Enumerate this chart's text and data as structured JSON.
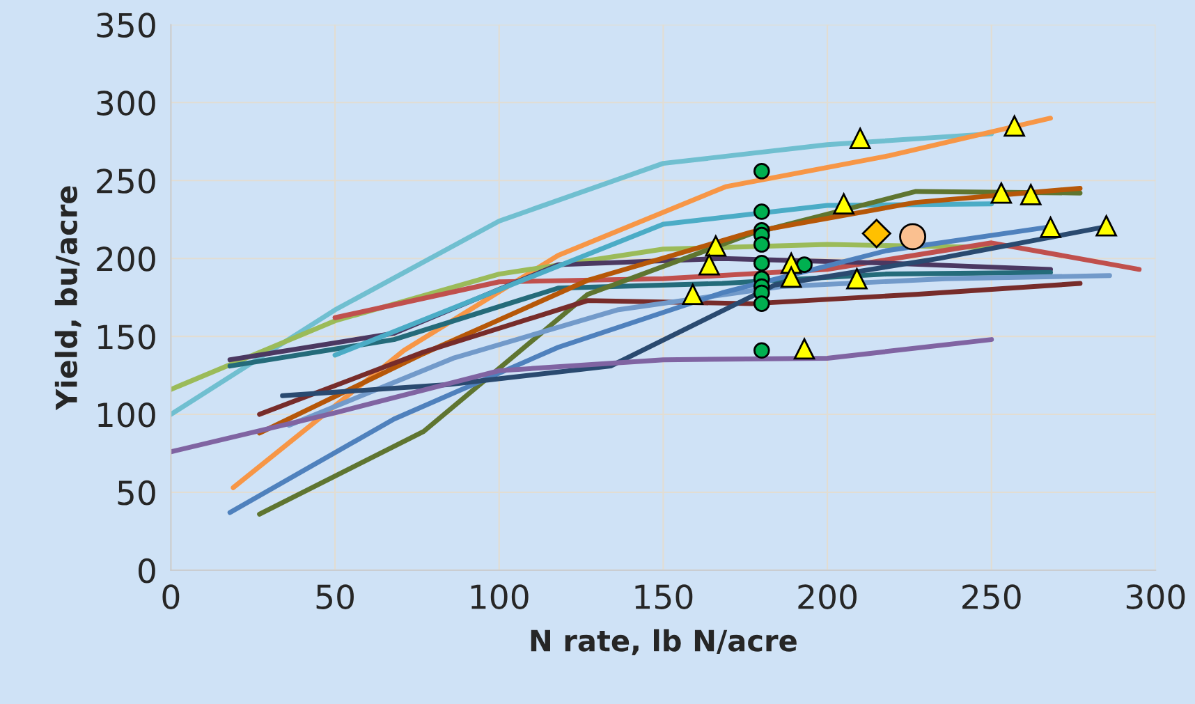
{
  "chart_data": {
    "type": "line",
    "xlabel": "N rate, lb N/acre",
    "ylabel": "Yield, bu/acre",
    "xlim": [
      0,
      300
    ],
    "ylim": [
      0,
      350
    ],
    "xticks": [
      0,
      50,
      100,
      150,
      200,
      250,
      300
    ],
    "yticks": [
      0,
      50,
      100,
      150,
      200,
      250,
      300,
      350
    ],
    "grid": true,
    "marker": "none",
    "line_style": "solid",
    "series": [
      {
        "color": "#70bfd0",
        "x": [
          0,
          50,
          100,
          150,
          200,
          250
        ],
        "values": [
          100,
          167,
          224,
          261,
          273,
          280
        ]
      },
      {
        "color": "#f79646",
        "x": [
          19,
          71,
          118,
          169,
          219,
          268
        ],
        "values": [
          53,
          141,
          202,
          246,
          266,
          290
        ]
      },
      {
        "color": "#9bbb59",
        "x": [
          0,
          50,
          100,
          150,
          200,
          250
        ],
        "values": [
          116,
          160,
          190,
          206,
          209,
          207
        ]
      },
      {
        "color": "#c0504d",
        "x": [
          50,
          100,
          150,
          200,
          250,
          295
        ],
        "values": [
          162,
          185,
          187,
          193,
          210,
          193
        ]
      },
      {
        "color": "#4b3861",
        "x": [
          18,
          68,
          118,
          168,
          218,
          268
        ],
        "values": [
          135,
          152,
          196,
          200,
          197,
          193
        ]
      },
      {
        "color": "#246b7a",
        "x": [
          18,
          68,
          118,
          168,
          218,
          268
        ],
        "values": [
          131,
          148,
          181,
          184,
          190,
          191
        ]
      },
      {
        "color": "#4bacc6",
        "x": [
          50,
          100,
          150,
          200,
          250
        ],
        "values": [
          138,
          180,
          222,
          234,
          235
        ]
      },
      {
        "color": "#5f7530",
        "x": [
          27,
          77,
          127,
          177,
          227,
          277
        ],
        "values": [
          36,
          89,
          177,
          216,
          243,
          242
        ]
      },
      {
        "color": "#b65708",
        "x": [
          27,
          77,
          127,
          177,
          227,
          277
        ],
        "values": [
          88,
          139,
          186,
          217,
          236,
          245
        ]
      },
      {
        "color": "#772c2a",
        "x": [
          27,
          77,
          127,
          177,
          227,
          277
        ],
        "values": [
          100,
          140,
          173,
          171,
          177,
          184
        ]
      },
      {
        "color": "#729aca",
        "x": [
          36,
          86,
          136,
          186,
          236,
          286
        ],
        "values": [
          93,
          136,
          167,
          182,
          187,
          189
        ]
      },
      {
        "color": "#4f81bd",
        "x": [
          18,
          68,
          118,
          168,
          218,
          267
        ],
        "values": [
          37,
          97,
          143,
          178,
          205,
          220
        ]
      },
      {
        "color": "#2a4a70",
        "x": [
          34,
          84,
          134,
          184,
          234,
          284
        ],
        "values": [
          112,
          119,
          131,
          183,
          200,
          220
        ]
      },
      {
        "color": "#8064a2",
        "x": [
          0,
          50,
          100,
          150,
          200,
          250
        ],
        "values": [
          76,
          101,
          128,
          135,
          136,
          148
        ]
      },
      {
        "type": "scatter",
        "marker": "circle",
        "color": "#00b050",
        "x": [
          180,
          180,
          180,
          180,
          180,
          180,
          180,
          180,
          180,
          180,
          180,
          193
        ],
        "values": [
          256,
          230,
          218,
          215,
          209,
          197,
          187,
          182,
          178,
          171,
          141,
          196
        ]
      },
      {
        "type": "scatter",
        "marker": "triangle",
        "color": "#ffff00",
        "x": [
          210,
          205,
          166,
          164,
          189,
          189,
          159,
          209,
          193,
          257,
          253,
          262,
          268,
          285
        ],
        "values": [
          277,
          235,
          208,
          196,
          197,
          188,
          177,
          187,
          142,
          285,
          242,
          241,
          220,
          221
        ]
      },
      {
        "type": "scatter",
        "marker": "diamond",
        "color": "#ffc000",
        "x": [
          215
        ],
        "values": [
          216
        ]
      },
      {
        "type": "scatter",
        "marker": "circle",
        "color": "#fac090",
        "x": [
          226
        ],
        "values": [
          214
        ]
      }
    ]
  }
}
